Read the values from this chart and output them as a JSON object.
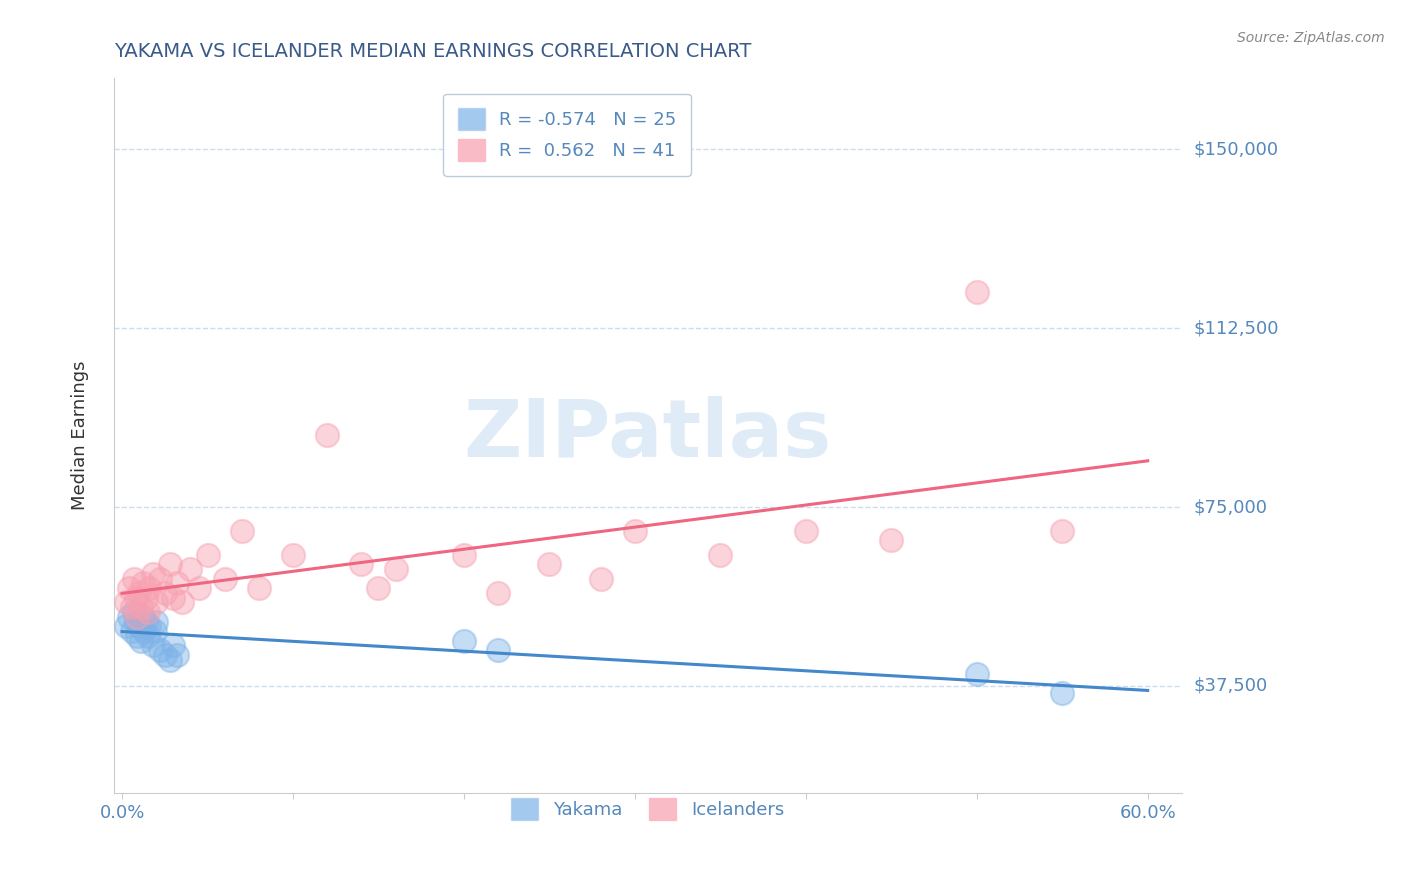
{
  "title": "YAKAMA VS ICELANDER MEDIAN EARNINGS CORRELATION CHART",
  "source": "Source: ZipAtlas.com",
  "ylabel": "Median Earnings",
  "xlim": [
    -0.005,
    0.62
  ],
  "ylim": [
    15000,
    165000
  ],
  "yticks": [
    37500,
    75000,
    112500,
    150000
  ],
  "ytick_labels": [
    "$37,500",
    "$75,000",
    "$112,500",
    "$150,000"
  ],
  "xticks": [
    0.0,
    0.1,
    0.2,
    0.3,
    0.4,
    0.5,
    0.6
  ],
  "xtick_labels": [
    "0.0%",
    "",
    "",
    "",
    "",
    "",
    "60.0%"
  ],
  "yakama_R": -0.574,
  "yakama_N": 25,
  "icelander_R": 0.562,
  "icelander_N": 41,
  "blue_color": "#7EB3E8",
  "pink_color": "#F7A0B0",
  "blue_line_color": "#4488CC",
  "pink_line_color": "#EE6680",
  "title_color": "#3A5A8A",
  "axis_color": "#5588BB",
  "grid_color": "#CCDDEE",
  "background_color": "#FFFFFF",
  "yakama_x": [
    0.002,
    0.004,
    0.006,
    0.007,
    0.008,
    0.009,
    0.01,
    0.011,
    0.012,
    0.013,
    0.014,
    0.015,
    0.016,
    0.018,
    0.019,
    0.02,
    0.022,
    0.025,
    0.028,
    0.03,
    0.032,
    0.2,
    0.22,
    0.5,
    0.55
  ],
  "yakama_y": [
    50000,
    52000,
    49000,
    53000,
    51000,
    48000,
    50000,
    47000,
    52000,
    49000,
    51000,
    48000,
    50000,
    46000,
    49000,
    51000,
    45000,
    44000,
    43000,
    46000,
    44000,
    47000,
    45000,
    40000,
    36000
  ],
  "icelander_x": [
    0.002,
    0.004,
    0.006,
    0.007,
    0.008,
    0.009,
    0.01,
    0.011,
    0.012,
    0.014,
    0.015,
    0.016,
    0.018,
    0.02,
    0.022,
    0.025,
    0.028,
    0.03,
    0.032,
    0.035,
    0.04,
    0.045,
    0.05,
    0.06,
    0.07,
    0.08,
    0.1,
    0.12,
    0.14,
    0.15,
    0.16,
    0.2,
    0.22,
    0.25,
    0.28,
    0.3,
    0.35,
    0.4,
    0.45,
    0.5,
    0.55
  ],
  "icelander_y": [
    55000,
    58000,
    54000,
    60000,
    56000,
    52000,
    57000,
    54000,
    59000,
    56000,
    53000,
    58000,
    61000,
    55000,
    60000,
    57000,
    63000,
    56000,
    59000,
    55000,
    62000,
    58000,
    65000,
    60000,
    70000,
    58000,
    65000,
    90000,
    63000,
    58000,
    62000,
    65000,
    57000,
    63000,
    60000,
    70000,
    65000,
    70000,
    68000,
    120000,
    70000
  ]
}
